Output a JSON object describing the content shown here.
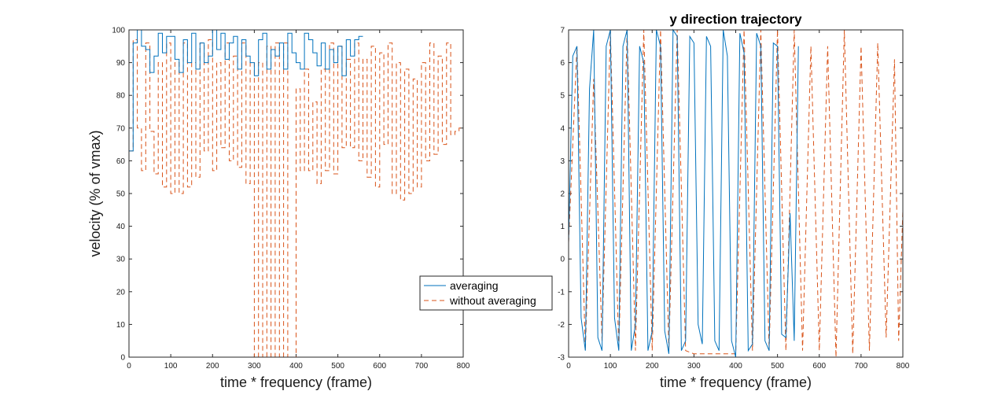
{
  "colors": {
    "averaging": "#0072BD",
    "without_averaging": "#D95319",
    "axes": "#262626"
  },
  "legend": {
    "placement": "between-panels",
    "items": [
      {
        "label": "averaging",
        "style": "solid",
        "color": "#0072BD"
      },
      {
        "label": "without averaging",
        "style": "dashed",
        "color": "#D95319"
      }
    ]
  },
  "chart_data": [
    {
      "type": "line",
      "title": "",
      "xlabel": "time * frequency  (frame)",
      "ylabel": "velocity (% of vmax)",
      "xlim": [
        0,
        800
      ],
      "ylim": [
        0,
        100
      ],
      "xticks": [
        0,
        100,
        200,
        300,
        400,
        500,
        600,
        700,
        800
      ],
      "yticks": [
        0,
        10,
        20,
        30,
        40,
        50,
        60,
        70,
        80,
        90,
        100
      ],
      "grid": false,
      "series": [
        {
          "name": "averaging",
          "step": true,
          "style": "solid",
          "color": "#0072BD",
          "x": [
            0,
            10,
            20,
            30,
            40,
            50,
            60,
            70,
            80,
            90,
            100,
            110,
            120,
            130,
            140,
            150,
            160,
            170,
            180,
            190,
            200,
            210,
            220,
            230,
            240,
            250,
            260,
            270,
            280,
            290,
            300,
            310,
            320,
            330,
            340,
            350,
            360,
            370,
            380,
            390,
            400,
            410,
            420,
            430,
            440,
            450,
            460,
            470,
            480,
            490,
            500,
            510,
            520,
            530,
            540,
            550
          ],
          "y": [
            63,
            96,
            100,
            95,
            94,
            87,
            92,
            99,
            93,
            98,
            98,
            91,
            87,
            97,
            90,
            99,
            88,
            96,
            90,
            92,
            100,
            94,
            99,
            91,
            96,
            98,
            88,
            97,
            92,
            90,
            86,
            97,
            99,
            88,
            94,
            92,
            96,
            88,
            99,
            93,
            90,
            88,
            99,
            97,
            93,
            89,
            96,
            88,
            94,
            90,
            95,
            86,
            97,
            92,
            97,
            98
          ]
        },
        {
          "name": "without averaging",
          "step": true,
          "style": "dashed",
          "color": "#D95319",
          "x": [
            0,
            10,
            20,
            30,
            40,
            50,
            60,
            70,
            80,
            90,
            100,
            110,
            120,
            130,
            140,
            150,
            160,
            170,
            180,
            190,
            200,
            210,
            220,
            230,
            240,
            250,
            260,
            270,
            280,
            290,
            300,
            310,
            320,
            330,
            340,
            350,
            360,
            370,
            380,
            390,
            400,
            410,
            420,
            430,
            440,
            450,
            460,
            470,
            480,
            490,
            500,
            510,
            520,
            530,
            540,
            550,
            560,
            570,
            580,
            590,
            600,
            610,
            620,
            630,
            640,
            650,
            660,
            670,
            680,
            690,
            700,
            710,
            720,
            730,
            740,
            750,
            760,
            770,
            780,
            790
          ],
          "y": [
            63,
            97,
            70,
            57,
            96,
            69,
            56,
            90,
            52,
            96,
            50,
            90,
            50,
            96,
            52,
            90,
            55,
            96,
            63,
            97,
            57,
            90,
            64,
            96,
            60,
            92,
            58,
            96,
            53,
            90,
            0,
            90,
            0,
            95,
            0,
            96,
            0,
            96,
            0,
            0,
            82,
            57,
            88,
            57,
            78,
            53,
            88,
            57,
            96,
            56,
            95,
            64,
            91,
            64,
            96,
            60,
            91,
            55,
            95,
            52,
            93,
            65,
            96,
            50,
            90,
            48,
            88,
            50,
            85,
            52,
            90,
            60,
            96,
            62,
            92,
            65,
            96,
            68,
            69,
            70
          ]
        }
      ]
    },
    {
      "type": "line",
      "title": "y direction trajectory",
      "xlabel": "time * frequency (frame)",
      "ylabel": "",
      "xlim": [
        0,
        800
      ],
      "ylim": [
        -3,
        7
      ],
      "xticks": [
        0,
        100,
        200,
        300,
        400,
        500,
        600,
        700,
        800
      ],
      "yticks": [
        -3,
        -2,
        -1,
        0,
        1,
        2,
        3,
        4,
        5,
        6,
        7
      ],
      "grid": false,
      "series": [
        {
          "name": "averaging",
          "step": false,
          "style": "solid",
          "color": "#0072BD",
          "x": [
            0,
            10,
            20,
            30,
            40,
            50,
            60,
            70,
            80,
            90,
            100,
            110,
            120,
            130,
            140,
            150,
            160,
            170,
            180,
            190,
            200,
            210,
            220,
            230,
            240,
            250,
            260,
            270,
            280,
            290,
            300,
            310,
            320,
            330,
            340,
            350,
            360,
            370,
            380,
            390,
            400,
            410,
            420,
            430,
            440,
            450,
            460,
            470,
            480,
            490,
            500,
            510,
            520,
            530,
            540,
            550
          ],
          "y": [
            0.5,
            6.2,
            6.5,
            -1.8,
            -2.8,
            5.2,
            7,
            -2.4,
            -2.8,
            6.5,
            7,
            -1.8,
            -2.8,
            6.5,
            7,
            -2.8,
            -2,
            6.5,
            6,
            -2.8,
            -2.2,
            7,
            6.5,
            -2.2,
            -2.9,
            7,
            6.8,
            -2.8,
            -2.5,
            6.8,
            6.6,
            -2,
            -2.6,
            6.8,
            6.5,
            -2.5,
            -2.8,
            7,
            6.2,
            -2.5,
            -3,
            6.9,
            6.3,
            -2.8,
            -2.6,
            6.9,
            6.5,
            -2.5,
            -2.8,
            6.6,
            6.5,
            -2.3,
            -2.4,
            1.4,
            -2.5,
            6.5
          ]
        },
        {
          "name": "without averaging",
          "step": false,
          "style": "dashed",
          "color": "#D95319",
          "x": [
            0,
            20,
            40,
            60,
            80,
            100,
            120,
            140,
            160,
            180,
            200,
            220,
            240,
            260,
            280,
            300,
            320,
            340,
            360,
            380,
            400,
            420,
            440,
            460,
            480,
            500,
            520,
            540,
            560,
            580,
            600,
            620,
            640,
            660,
            680,
            700,
            720,
            740,
            760,
            780,
            790,
            800
          ],
          "y": [
            0.5,
            6.5,
            -2.8,
            5.5,
            -2.5,
            7,
            -2.8,
            7,
            -2.8,
            7,
            -2.8,
            7,
            -2.8,
            7,
            -2.8,
            -2.9,
            -2.9,
            -2.9,
            -2.9,
            -2.9,
            -2.9,
            7,
            -2.8,
            7,
            -2.8,
            7,
            -2.8,
            7,
            -2.8,
            6.5,
            -2.8,
            6.5,
            -3,
            7,
            -2.9,
            6.5,
            -2.8,
            6.6,
            -2.4,
            6.1,
            -2.5,
            1.5
          ]
        }
      ]
    }
  ]
}
